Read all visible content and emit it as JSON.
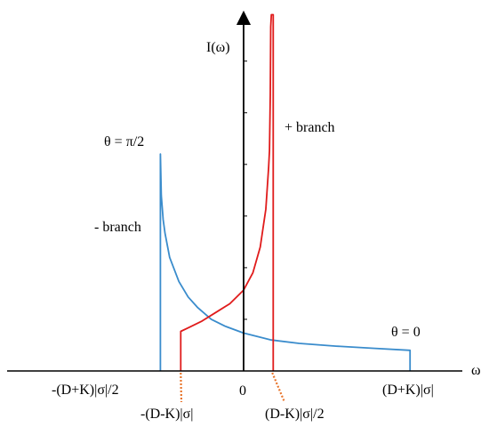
{
  "chart_data": {
    "type": "line",
    "axes": {
      "x_label": "ω",
      "y_label": "I(ω)",
      "origin_label": "0",
      "xlim": [
        -2.65,
        2.65
      ],
      "ylim": [
        0,
        10
      ],
      "y_ticks": [
        1.5,
        3.0,
        4.5,
        6.0,
        7.5,
        9.0
      ]
    },
    "tick_labels": {
      "minus_D_plus_K_half": "-(D+K)|σ|/2",
      "minus_D_minus_K": "-(D-K)|σ|",
      "D_minus_K_half": "(D-K)|σ|/2",
      "D_plus_K": "(D+K)|σ|"
    },
    "annotations": {
      "theta_pi_half": "θ = π/2",
      "theta_zero": "θ = 0",
      "minus_branch": "- branch",
      "plus_branch": "+ branch"
    },
    "params": {
      "D_plus_K_sigma": 1.8,
      "D_minus_K_sigma": 1.36
    },
    "colors": {
      "minus_branch": "#3a8ccc",
      "plus_branch": "#e01b1b",
      "axis": "#000000",
      "guide": "#e8742a"
    },
    "series": [
      {
        "name": "- branch",
        "color": "#3a8ccc",
        "points": [
          [
            -0.9,
            0
          ],
          [
            -0.9,
            6.3
          ],
          [
            -0.89,
            5.1
          ],
          [
            -0.87,
            4.4
          ],
          [
            -0.85,
            4.0
          ],
          [
            -0.8,
            3.3
          ],
          [
            -0.7,
            2.6
          ],
          [
            -0.6,
            2.15
          ],
          [
            -0.5,
            1.85
          ],
          [
            -0.35,
            1.5
          ],
          [
            -0.2,
            1.3
          ],
          [
            0.0,
            1.1
          ],
          [
            0.3,
            0.9
          ],
          [
            0.6,
            0.8
          ],
          [
            1.0,
            0.72
          ],
          [
            1.4,
            0.66
          ],
          [
            1.8,
            0.6
          ],
          [
            1.8,
            0
          ]
        ]
      },
      {
        "name": "+ branch",
        "color": "#e01b1b",
        "points": [
          [
            -0.68,
            0
          ],
          [
            -0.68,
            1.15
          ],
          [
            -0.6,
            1.25
          ],
          [
            -0.45,
            1.45
          ],
          [
            -0.3,
            1.7
          ],
          [
            -0.15,
            1.95
          ],
          [
            0.0,
            2.35
          ],
          [
            0.1,
            2.85
          ],
          [
            0.18,
            3.6
          ],
          [
            0.24,
            4.7
          ],
          [
            0.27,
            5.9
          ],
          [
            0.28,
            6.4
          ],
          [
            0.288,
            8.0
          ],
          [
            0.293,
            10.0
          ],
          [
            0.3,
            10.35
          ],
          [
            0.32,
            10.35
          ],
          [
            0.32,
            0
          ]
        ]
      }
    ]
  }
}
